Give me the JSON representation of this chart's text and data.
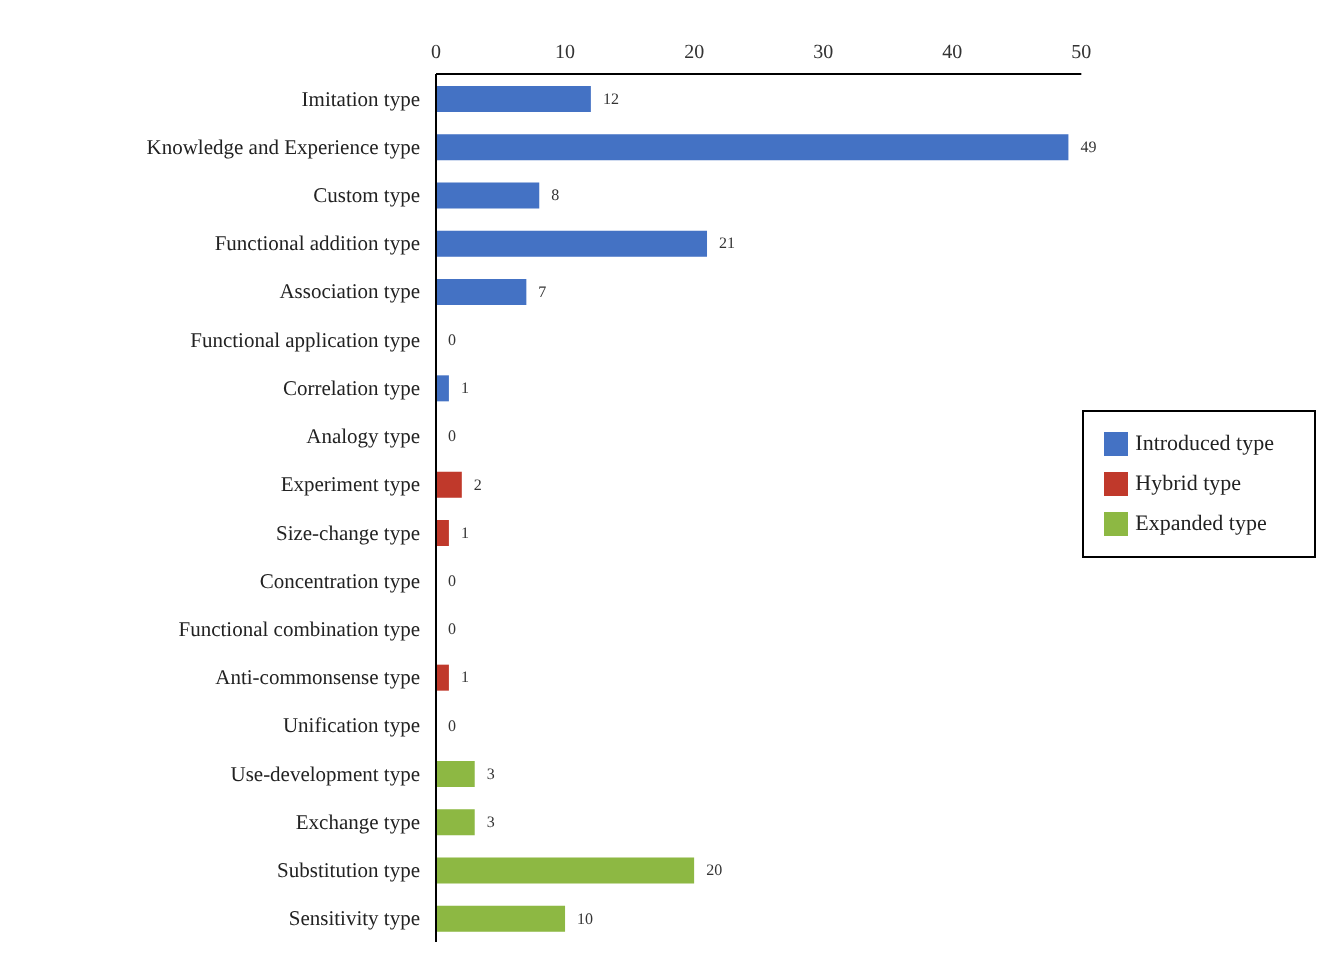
{
  "chart_data": {
    "type": "bar",
    "orientation": "horizontal",
    "stacked": true,
    "categories": [
      "Imitation type",
      "Knowledge and Experience type",
      "Custom type",
      "Functional addition type",
      "Association type",
      "Functional application type",
      "Correlation type",
      "Analogy type",
      "Experiment type",
      "Size-change type",
      "Concentration type",
      "Functional combination  type",
      "Anti-commonsense type",
      "Unification type",
      "Use-development type",
      "Exchange type",
      "Substitution type",
      "Sensitivity type"
    ],
    "series": [
      {
        "name": "Introduced type",
        "color": "#4472c4",
        "values": [
          12,
          49,
          8,
          21,
          7,
          0,
          1,
          0,
          null,
          null,
          null,
          null,
          null,
          null,
          null,
          null,
          null,
          null
        ]
      },
      {
        "name": "Hybrid type",
        "color": "#c0392b",
        "values": [
          null,
          null,
          null,
          null,
          null,
          null,
          null,
          null,
          2,
          1,
          0,
          0,
          1,
          0,
          null,
          null,
          null,
          null
        ]
      },
      {
        "name": "Expanded type",
        "color": "#8db843",
        "values": [
          null,
          null,
          null,
          null,
          null,
          null,
          null,
          null,
          null,
          null,
          null,
          null,
          null,
          null,
          3,
          3,
          20,
          10
        ]
      }
    ],
    "xlim": [
      0,
      50
    ],
    "xticks": [
      0,
      10,
      20,
      30,
      40,
      50
    ],
    "data_labels": true,
    "grid": false,
    "legend": "right"
  }
}
